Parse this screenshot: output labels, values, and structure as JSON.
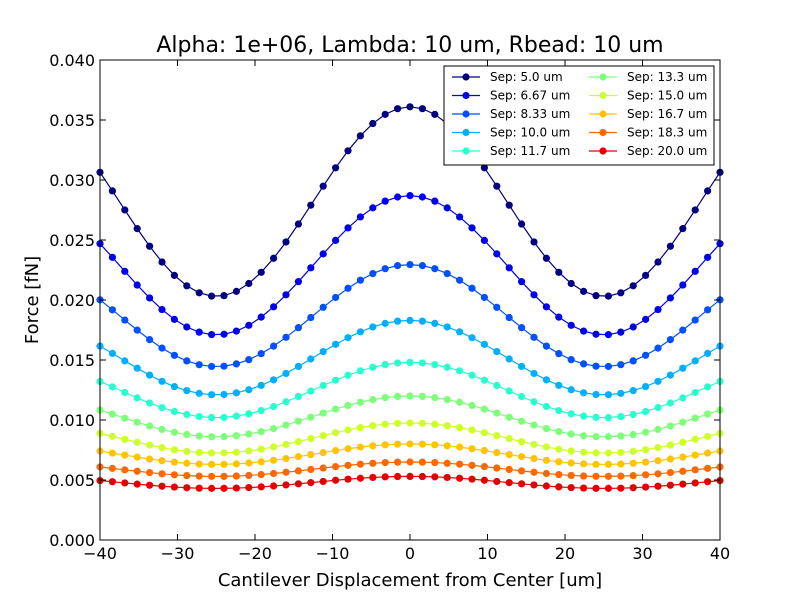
{
  "chart_data": {
    "type": "line",
    "title": "Alpha: 1e+06, Lambda: 10 um, Rbead: 10 um",
    "xlabel": "Cantilever Displacement from Center [um]",
    "ylabel": "Force [fN]",
    "xlim": [
      -40,
      40
    ],
    "ylim": [
      0.0,
      0.04
    ],
    "xticks": [
      -40,
      -30,
      -20,
      -10,
      0,
      10,
      20,
      30,
      40
    ],
    "xtick_labels": [
      "−40",
      "−30",
      "−20",
      "−10",
      "0",
      "10",
      "20",
      "30",
      "40"
    ],
    "yticks": [
      0.0,
      0.005,
      0.01,
      0.015,
      0.02,
      0.025,
      0.03,
      0.035,
      0.04
    ],
    "ytick_labels": [
      "0.000",
      "0.005",
      "0.010",
      "0.015",
      "0.020",
      "0.025",
      "0.030",
      "0.035",
      "0.040"
    ],
    "grid": false,
    "legend_position": "top-right",
    "x": [
      -40,
      -38.4,
      -36.8,
      -35.2,
      -33.6,
      -32,
      -30.4,
      -28.8,
      -27.2,
      -25.6,
      -24,
      -22.4,
      -20.8,
      -19.2,
      -17.6,
      -16,
      -14.4,
      -12.8,
      -11.2,
      -9.6,
      -8,
      -6.4,
      -4.8,
      -3.2,
      -1.6,
      0,
      1.6,
      3.2,
      4.8,
      6.4,
      8,
      9.6,
      11.2,
      12.8,
      14.4,
      16,
      17.6,
      19.2,
      20.8,
      22.4,
      24,
      25.6,
      27.2,
      28.8,
      30.4,
      32,
      33.6,
      35.2,
      36.8,
      38.4,
      40
    ],
    "series": [
      {
        "name": "Sep: 5.0 um",
        "color": "#000080",
        "y_mean": 0.0282,
        "y_amp": 0.0079
      },
      {
        "name": "Sep: 6.67 um",
        "color": "#0000f0",
        "y_mean": 0.0229,
        "y_amp": 0.0058
      },
      {
        "name": "Sep: 8.33 um",
        "color": "#0050ff",
        "y_mean": 0.0187,
        "y_amp": 0.00425
      },
      {
        "name": "Sep: 10.0 um",
        "color": "#00b0ff",
        "y_mean": 0.0152,
        "y_amp": 0.0031
      },
      {
        "name": "Sep: 11.7 um",
        "color": "#29ffce",
        "y_mean": 0.0125,
        "y_amp": 0.0023
      },
      {
        "name": "Sep: 13.3 um",
        "color": "#7dff7a",
        "y_mean": 0.0103,
        "y_amp": 0.0017
      },
      {
        "name": "Sep: 15.0 um",
        "color": "#ceff29",
        "y_mean": 0.0085,
        "y_amp": 0.00125
      },
      {
        "name": "Sep: 16.7 um",
        "color": "#ffc400",
        "y_mean": 0.00715,
        "y_amp": 0.00085
      },
      {
        "name": "Sep: 18.3 um",
        "color": "#ff6800",
        "y_mean": 0.0059,
        "y_amp": 0.0006
      },
      {
        "name": "Sep: 20.0 um",
        "color": "#e40000",
        "y_mean": 0.0048,
        "y_amp": 0.0005
      }
    ]
  }
}
